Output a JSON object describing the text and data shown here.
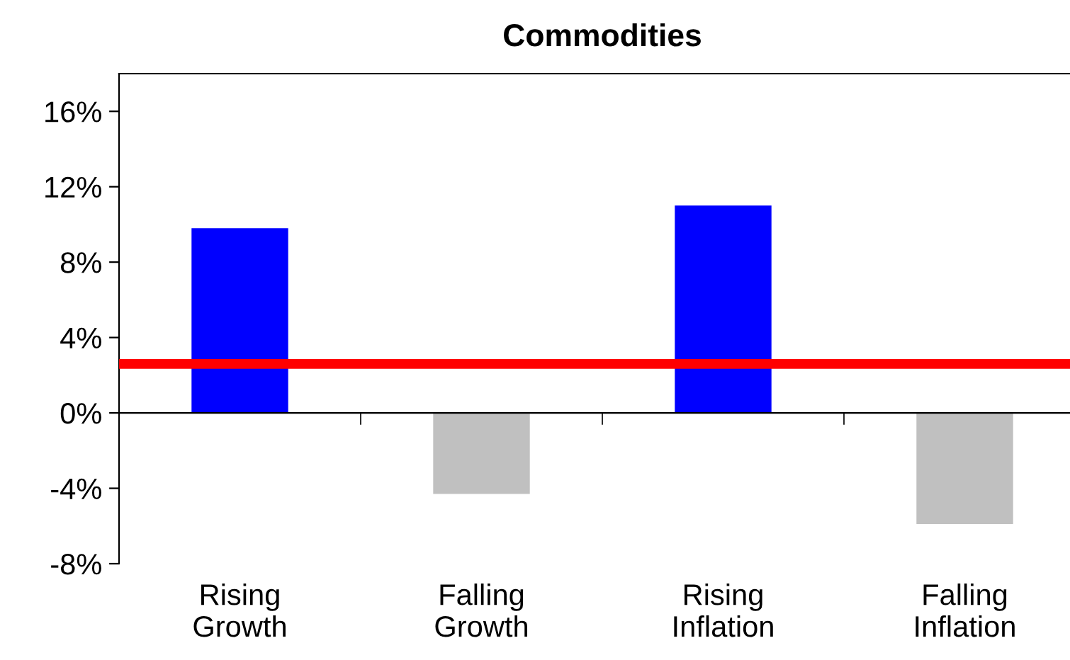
{
  "chart_data": {
    "type": "bar",
    "title": "Commodities",
    "categories": [
      "Rising\nGrowth",
      "Falling\nGrowth",
      "Rising\nInflation",
      "Falling\nInflation"
    ],
    "values": [
      9.8,
      -4.3,
      11.0,
      -5.9
    ],
    "colors": [
      "#0000ff",
      "#c0c0c0",
      "#0000ff",
      "#c0c0c0"
    ],
    "ylim": [
      -8,
      18
    ],
    "yticks": [
      {
        "value": -8,
        "label": "-8%"
      },
      {
        "value": -4,
        "label": "-4%"
      },
      {
        "value": 0,
        "label": "0%"
      },
      {
        "value": 4,
        "label": "4%"
      },
      {
        "value": 8,
        "label": "8%"
      },
      {
        "value": 12,
        "label": "12%"
      },
      {
        "value": 16,
        "label": "16%"
      }
    ],
    "ref_lines": [
      {
        "axis": "y",
        "value": 2.6,
        "label": null,
        "color": "#ff0000"
      }
    ],
    "legend": false
  }
}
